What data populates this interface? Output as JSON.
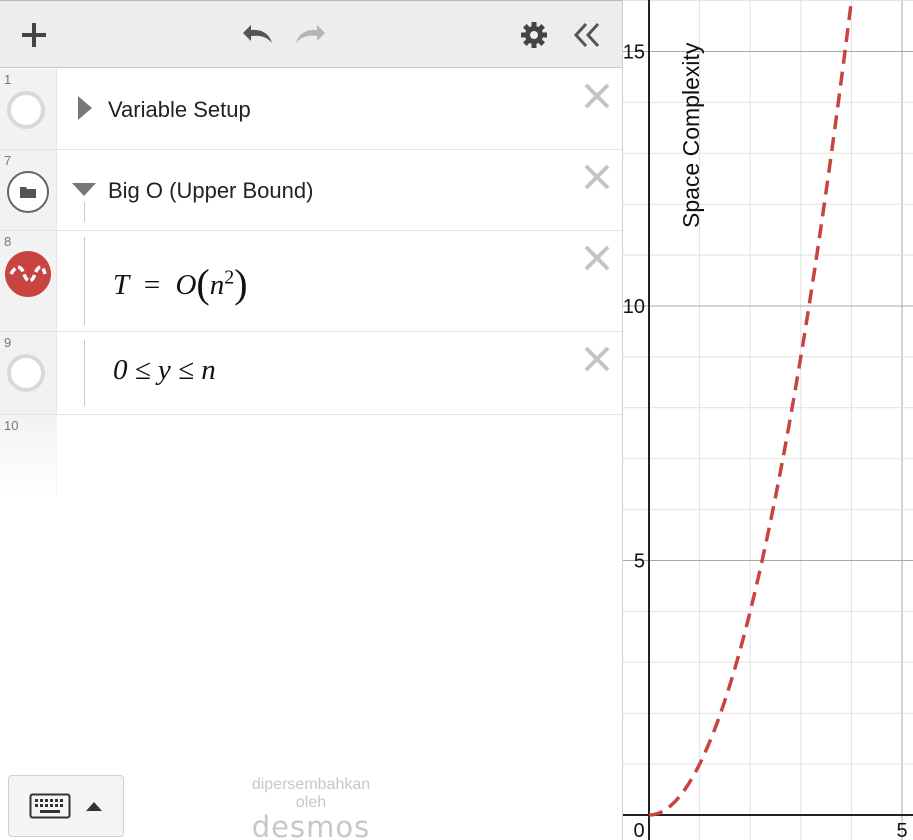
{
  "toolbar": {
    "add": "plus-icon",
    "undo": "undo-icon",
    "redo": "redo-icon",
    "settings": "gear-icon",
    "collapse": "double-chevron-left-icon"
  },
  "expressions": [
    {
      "index": "1",
      "type": "folder-collapsed",
      "label": "Variable Setup"
    },
    {
      "index": "7",
      "type": "folder-expanded",
      "label": "Big O (Upper Bound)"
    },
    {
      "index": "8",
      "type": "expression",
      "latex_lhs": "T",
      "eq": "=",
      "func": "O",
      "base": "n",
      "exp": "2",
      "color": "#c74440"
    },
    {
      "index": "9",
      "type": "expression",
      "text": "0 ≤ y ≤ n"
    },
    {
      "index": "10",
      "type": "empty"
    }
  ],
  "footer": {
    "keyboard_icon": "keyboard-icon",
    "brand_line1": "dipersembahkan",
    "brand_line2": "oleh",
    "brand_name": "desmos"
  },
  "graph": {
    "ylabel": "Space Complexity",
    "y_ticks": [
      "5",
      "10",
      "15"
    ],
    "x_ticks": [
      "0",
      "5"
    ]
  },
  "chart_data": {
    "type": "line",
    "ylabel": "Space Complexity",
    "xlim": [
      -0.5,
      5.2
    ],
    "ylim": [
      -0.4,
      16.2
    ],
    "x_ticks": [
      0,
      5
    ],
    "y_ticks": [
      5,
      10,
      15
    ],
    "grid": true,
    "series": [
      {
        "style": "dashed",
        "color": "#c74440",
        "x": [
          0,
          0.5,
          1,
          1.5,
          2,
          2.5,
          3,
          3.5,
          4
        ],
        "y": [
          0,
          0.25,
          1,
          2.25,
          4,
          6.25,
          9,
          12.25,
          16
        ]
      }
    ]
  }
}
